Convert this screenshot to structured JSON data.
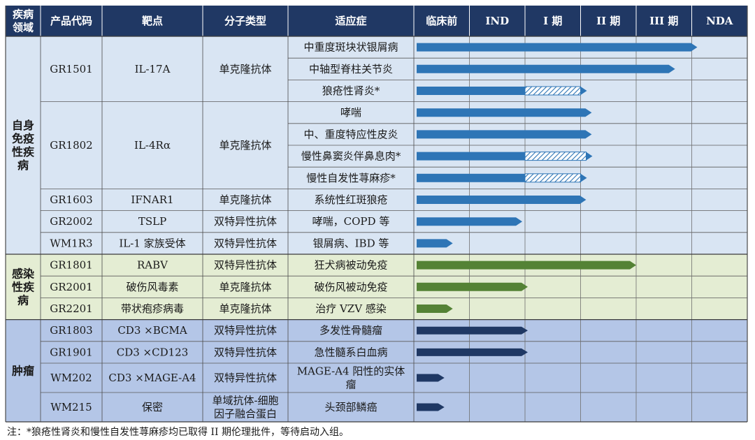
{
  "header": {
    "disease_area": "疾病领域",
    "code": "产品代码",
    "target": "靶点",
    "molecule_type": "分子类型",
    "indication": "适应症"
  },
  "chart_data": {
    "type": "table",
    "stages": [
      "临床前",
      "IND",
      "I 期",
      "II 期",
      "III 期",
      "NDA"
    ],
    "areas": [
      {
        "name": "自身免疫性疾病",
        "label_lines": [
          "自身",
          "免疫",
          "性疾",
          "病"
        ],
        "color": "#d9e5f3",
        "bar_color": "#2e75b6"
      },
      {
        "name": "感染性疾病",
        "label_lines": [
          "感染",
          "性疾",
          "病"
        ],
        "color": "#e4edd3",
        "bar_color": "#548235"
      },
      {
        "name": "肿瘤",
        "label_lines": [
          "肿瘤"
        ],
        "color": "#b4c6e7",
        "bar_color": "#1f3864"
      }
    ],
    "products": [
      {
        "code": "GR1501",
        "target": "IL-17A",
        "type": "单克隆抗体",
        "area": 0,
        "rows": 3
      },
      {
        "code": "GR1802",
        "target": "IL-4Rα",
        "type": "单克隆抗体",
        "area": 0,
        "rows": 4
      },
      {
        "code": "GR1603",
        "target": "IFNAR1",
        "type": "单克隆抗体",
        "area": 0,
        "rows": 1
      },
      {
        "code": "GR2002",
        "target": "TSLP",
        "type": "双特异性抗体",
        "area": 0,
        "rows": 1
      },
      {
        "code": "WM1R3",
        "target": "IL-1 家族受体",
        "type": "双特异性抗体",
        "area": 0,
        "rows": 1
      },
      {
        "code": "GR1801",
        "target": "RABV",
        "type": "双特异性抗体",
        "area": 1,
        "rows": 1
      },
      {
        "code": "GR2001",
        "target": "破伤风毒素",
        "type": "单克隆抗体",
        "area": 1,
        "rows": 1
      },
      {
        "code": "GR2201",
        "target": "带状疱疹病毒",
        "type": "单克隆抗体",
        "area": 1,
        "rows": 1
      },
      {
        "code": "GR1803",
        "target": "CD3 ×BCMA",
        "type": "双特异性抗体",
        "area": 2,
        "rows": 1
      },
      {
        "code": "GR1901",
        "target": "CD3 ×CD123",
        "type": "双特异性抗体",
        "area": 2,
        "rows": 1
      },
      {
        "code": "WM202",
        "target": "CD3 ×MAGE-A4",
        "type": "双特异性抗体",
        "area": 2,
        "rows": 1,
        "tall": true
      },
      {
        "code": "WM215",
        "target": "保密",
        "type": "单域抗体-细胞因子融合蛋白",
        "type_lines": [
          "单域抗体-细胞",
          "因子融合蛋白"
        ],
        "area": 2,
        "rows": 1,
        "tall": true
      }
    ],
    "indications": [
      {
        "name": "中重度斑块状银屑病",
        "progress": 5.1,
        "hatched_to": null
      },
      {
        "name": "中轴型脊柱关节炎",
        "progress": 4.7,
        "hatched_to": null
      },
      {
        "name": "狼疮性肾炎*",
        "progress": 2.0,
        "hatched_to": 3.0
      },
      {
        "name": "哮喘",
        "progress": 3.2,
        "hatched_to": null
      },
      {
        "name": "中、重度特应性皮炎",
        "progress": 3.2,
        "hatched_to": null
      },
      {
        "name": "慢性鼻窦炎伴鼻息肉*",
        "progress": 2.0,
        "hatched_to": 3.1
      },
      {
        "name": "慢性自发性荨麻疹*",
        "progress": 2.0,
        "hatched_to": 3.0
      },
      {
        "name": "系统性红斑狼疮",
        "progress": 3.1,
        "hatched_to": null
      },
      {
        "name": "哮喘，COPD 等",
        "progress": 1.95,
        "hatched_to": null
      },
      {
        "name": "银屑病、IBD 等",
        "progress": 0.7,
        "hatched_to": null
      },
      {
        "name": "狂犬病被动免疫",
        "progress": 4.0,
        "hatched_to": null
      },
      {
        "name": "破伤风被动免疫",
        "progress": 2.05,
        "hatched_to": null
      },
      {
        "name": "治疗 VZV 感染",
        "progress": 0.7,
        "hatched_to": null
      },
      {
        "name": "多发性骨髓瘤",
        "progress": 2.05,
        "hatched_to": null
      },
      {
        "name": "急性髓系白血病",
        "progress": 2.05,
        "hatched_to": null
      },
      {
        "name": "MAGE-A4 阳性的实体瘤",
        "name_lines": [
          "MAGE-A4 阳性的实体",
          "瘤"
        ],
        "progress": 0.55,
        "hatched_to": null
      },
      {
        "name": "头颈部鳞癌",
        "progress": 0.55,
        "hatched_to": null
      }
    ],
    "progress_unit": "stage columns completed (0 = start of 临床前)"
  },
  "footnote": "注：*狼疮性肾炎和慢性自发性荨麻疹均已取得 II 期伦理批件，等待启动入组。"
}
